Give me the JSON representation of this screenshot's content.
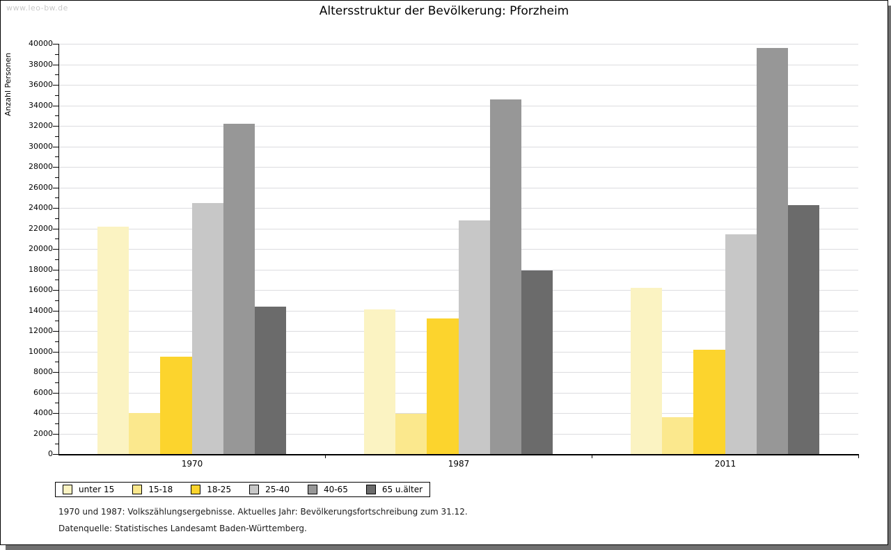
{
  "watermark": "www.leo-bw.de",
  "title": "Altersstruktur der Bevölkerung: Pforzheim",
  "ylabel": "Anzahl Personen",
  "footer": {
    "line1": "1970 und 1987: Volkszählungsergebnisse. Aktuelles Jahr: Bevölkerungsfortschreibung zum 31.12.",
    "line2": "Datenquelle: Statistisches Landesamt Baden-Württemberg."
  },
  "chart_data": {
    "type": "bar",
    "title": "Altersstruktur der Bevölkerung: Pforzheim",
    "xlabel": "",
    "ylabel": "Anzahl Personen",
    "categories": [
      "1970",
      "1987",
      "2011"
    ],
    "series": [
      {
        "name": "unter 15",
        "color": "#FBF3C2",
        "values": [
          22200,
          14100,
          16200
        ]
      },
      {
        "name": "15-18",
        "color": "#FBE88D",
        "values": [
          4000,
          3950,
          3600
        ]
      },
      {
        "name": "18-25",
        "color": "#FCD42D",
        "values": [
          9500,
          13200,
          10150
        ]
      },
      {
        "name": "25-40",
        "color": "#C7C7C7",
        "values": [
          24500,
          22800,
          21400
        ]
      },
      {
        "name": "40-65",
        "color": "#979797",
        "values": [
          32200,
          34600,
          39600
        ]
      },
      {
        "name": "65 u.älter",
        "color": "#6B6B6B",
        "values": [
          14400,
          17900,
          24300
        ]
      }
    ],
    "ylim": [
      0,
      40000
    ],
    "ytick_major": 2000,
    "ytick_minor": 1000,
    "grid": true,
    "legend_position": "bottom-left"
  }
}
